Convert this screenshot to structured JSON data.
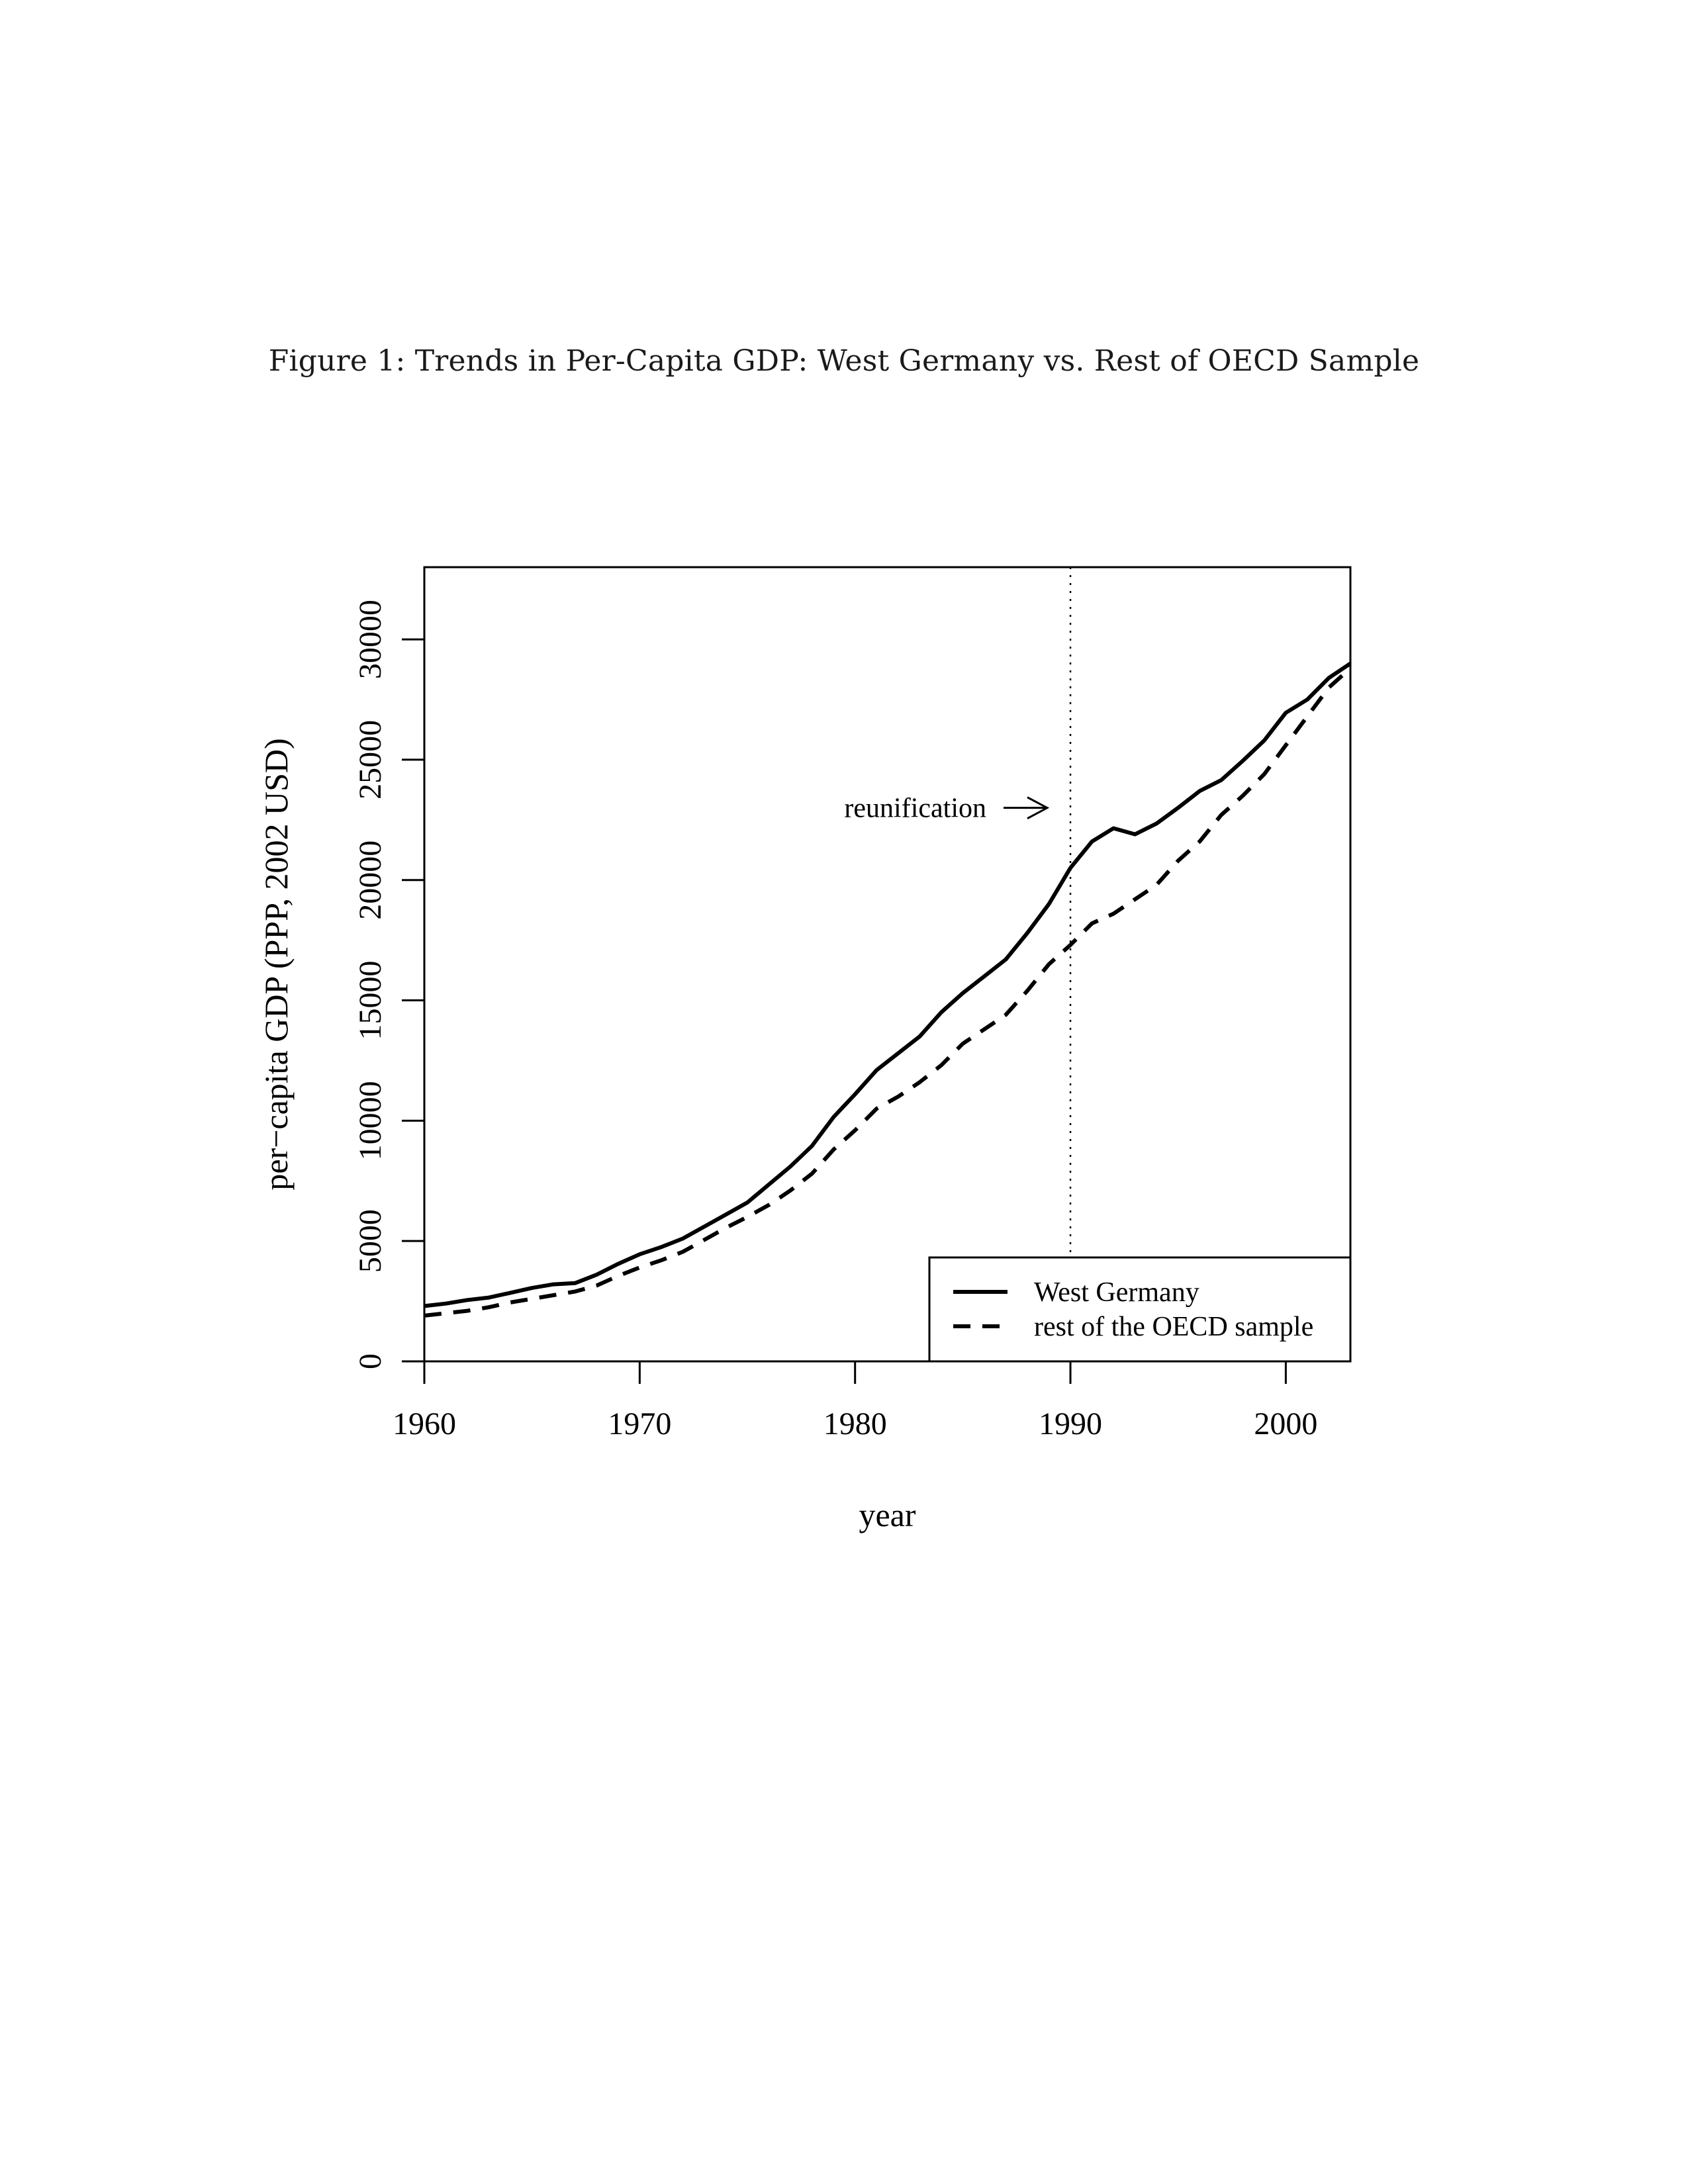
{
  "caption": "Figure 1: Trends in Per-Capita GDP: West Germany vs. Rest of OECD Sample",
  "chart_data": {
    "type": "line",
    "title": "",
    "xlabel": "year",
    "ylabel": "per−capita GDP (PPP, 2002 USD)",
    "xlim": [
      1960,
      2003
    ],
    "ylim": [
      0,
      33000
    ],
    "x_ticks": [
      1960,
      1970,
      1980,
      1990,
      2000
    ],
    "x_tick_labels": [
      "1960",
      "1970",
      "1980",
      "1990",
      "2000"
    ],
    "y_ticks": [
      0,
      5000,
      10000,
      15000,
      20000,
      25000,
      30000
    ],
    "y_tick_labels": [
      "0",
      "5000",
      "10000",
      "15000",
      "20000",
      "25000",
      "30000"
    ],
    "grid": false,
    "legend_position": "bottom-right",
    "annotation": {
      "text": "reunification",
      "x": 1990,
      "y": 23000
    },
    "vertical_line_x": 1990,
    "x": [
      1960,
      1961,
      1962,
      1963,
      1964,
      1965,
      1966,
      1967,
      1968,
      1969,
      1970,
      1971,
      1972,
      1973,
      1974,
      1975,
      1976,
      1977,
      1978,
      1979,
      1980,
      1981,
      1982,
      1983,
      1984,
      1985,
      1986,
      1987,
      1988,
      1989,
      1990,
      1991,
      1992,
      1993,
      1994,
      1995,
      1996,
      1997,
      1998,
      1999,
      2000,
      2001,
      2002,
      2003
    ],
    "series": [
      {
        "name": "West Germany",
        "style": "solid",
        "values": [
          2300,
          2400,
          2550,
          2650,
          2850,
          3050,
          3200,
          3250,
          3600,
          4050,
          4450,
          4750,
          5100,
          5600,
          6100,
          6600,
          7350,
          8100,
          8950,
          10150,
          11100,
          12100,
          12800,
          13500,
          14500,
          15300,
          16000,
          16700,
          17800,
          19000,
          20500,
          21600,
          22150,
          21900,
          22350,
          23000,
          23700,
          24150,
          24950,
          25800,
          26950,
          27500,
          28400,
          29000
        ]
      },
      {
        "name": "rest of the OECD sample",
        "style": "dashed",
        "values": [
          1900,
          2000,
          2100,
          2250,
          2450,
          2600,
          2750,
          2900,
          3150,
          3550,
          3900,
          4200,
          4550,
          5050,
          5550,
          6000,
          6500,
          7100,
          7800,
          8800,
          9600,
          10500,
          11000,
          11600,
          12300,
          13200,
          13800,
          14400,
          15400,
          16500,
          17300,
          18200,
          18600,
          19200,
          19800,
          20800,
          21600,
          22700,
          23500,
          24400,
          25600,
          26800,
          28000,
          28800
        ]
      }
    ]
  },
  "colors": {
    "line": "#000000",
    "background": "#ffffff"
  }
}
